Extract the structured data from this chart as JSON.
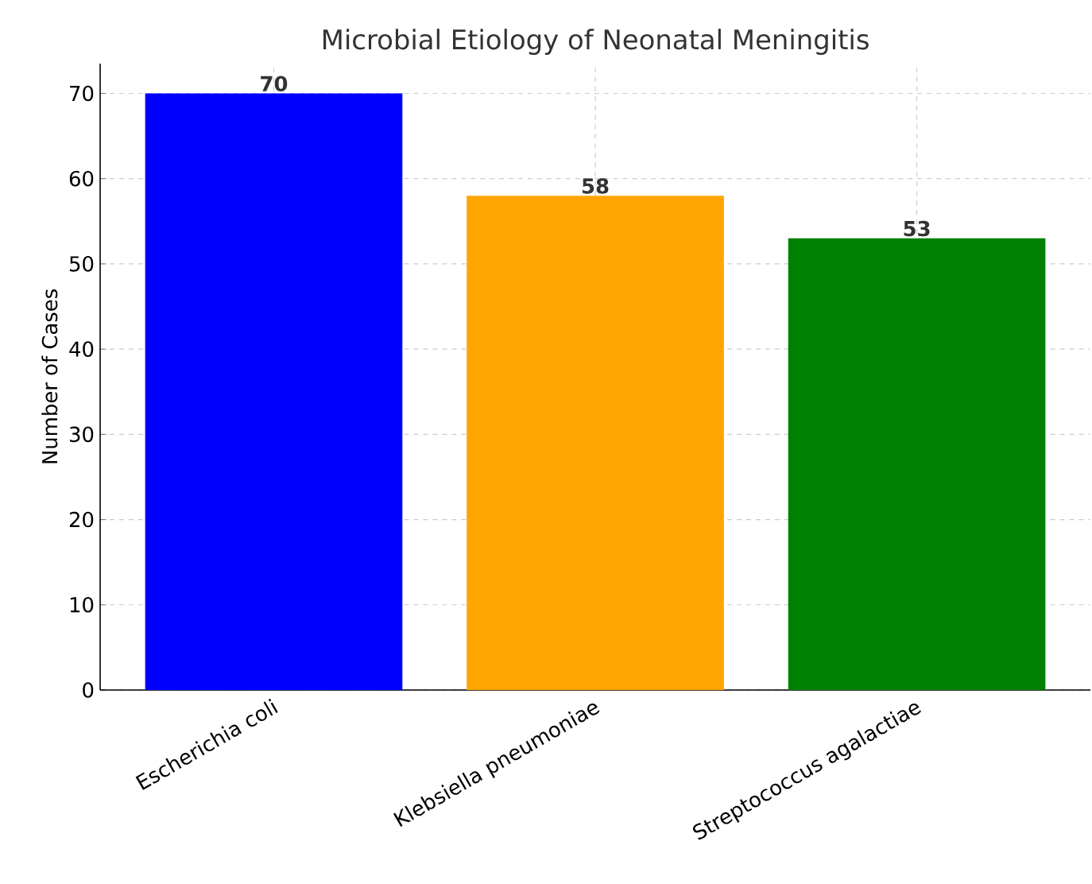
{
  "chart_data": {
    "type": "bar",
    "title": "Microbial Etiology of Neonatal Meningitis",
    "ylabel": "Number of Cases",
    "categories": [
      "Escherichia coli",
      "Klebsiella pneumoniae",
      "Streptococcus agalactiae"
    ],
    "values": [
      70,
      58,
      53
    ],
    "colors": [
      "#0000ff",
      "#ffa500",
      "#008000"
    ],
    "ylim": [
      0,
      73.5
    ],
    "yticks": [
      0,
      10,
      20,
      30,
      40,
      50,
      60,
      70
    ],
    "grid": true,
    "data_labels": true
  }
}
